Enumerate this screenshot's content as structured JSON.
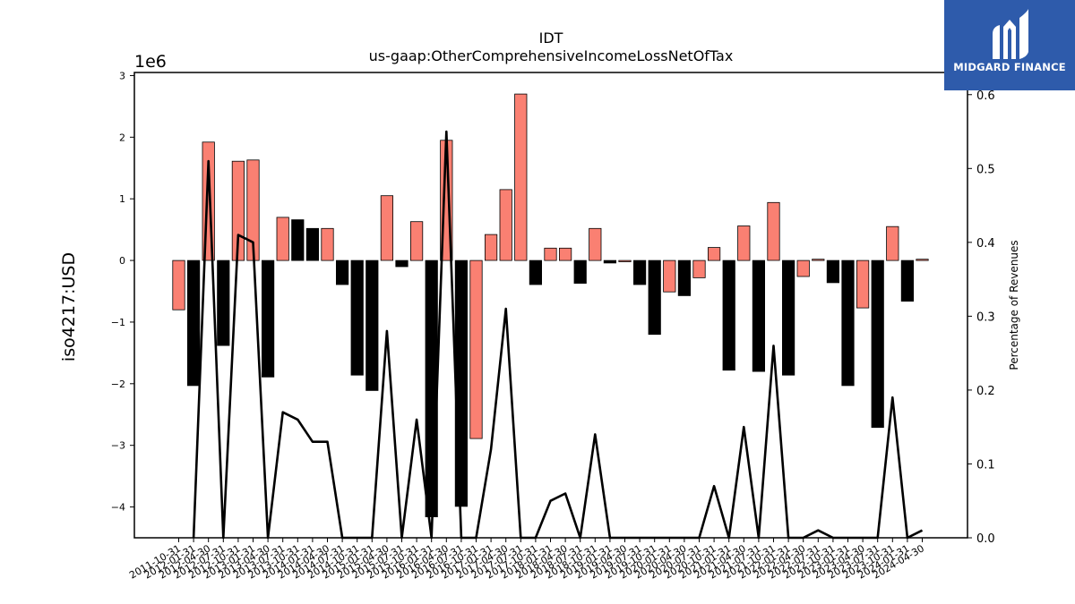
{
  "chart_data": {
    "type": "bar",
    "title": "IDT",
    "subtitle": "us-gaap:OtherComprehensiveIncomeLossNetOfTax",
    "ylabel": "iso4217:USD",
    "y_multiplier": "1e6",
    "y2label": "Percentage of Revenues",
    "ylim": [
      -4.5,
      3.05
    ],
    "y2lim": [
      0,
      0.63
    ],
    "yticks": [
      -4,
      -3,
      -2,
      -1,
      0,
      1,
      2,
      3
    ],
    "y2ticks": [
      0.0,
      0.1,
      0.2,
      0.3,
      0.4,
      0.5,
      0.6
    ],
    "colors": {
      "bar_positive_change": "#fa8072",
      "bar_negative_change": "#000000",
      "line": "#000000"
    },
    "grid": false,
    "categories": [
      "2011-10-31",
      "2012-01-31",
      "2012-04-30",
      "2012-07-31",
      "2012-10-31",
      "2013-01-31",
      "2013-04-30",
      "2013-07-31",
      "2013-10-31",
      "2014-01-31",
      "2014-04-30",
      "2014-07-31",
      "2014-10-31",
      "2015-01-31",
      "2015-04-30",
      "2015-07-31",
      "2015-10-31",
      "2016-01-31",
      "2016-04-30",
      "2016-07-31",
      "2016-10-31",
      "2017-01-31",
      "2017-04-30",
      "2017-07-31",
      "2017-10-31",
      "2018-01-31",
      "2018-04-30",
      "2018-07-31",
      "2018-10-31",
      "2019-01-31",
      "2019-04-30",
      "2019-07-31",
      "2019-10-31",
      "2020-01-31",
      "2020-04-30",
      "2020-07-31",
      "2020-10-31",
      "2021-01-31",
      "2021-04-30",
      "2021-07-31",
      "2021-10-31",
      "2022-01-31",
      "2022-04-30",
      "2022-07-31",
      "2022-10-31",
      "2023-01-31",
      "2023-04-30",
      "2023-07-31",
      "2023-10-31",
      "2024-01-31",
      "2024-04-30"
    ],
    "series": [
      {
        "values": [
          -0.8,
          -2.03,
          1.92,
          -1.38,
          1.61,
          1.63,
          -1.89,
          0.7,
          0.66,
          0.52,
          0.52,
          -0.39,
          -1.86,
          -2.11,
          1.05,
          -0.1,
          0.63,
          -4.16,
          1.95,
          -3.99,
          -2.89,
          0.42,
          1.15,
          2.7,
          -0.39,
          0.2,
          0.2,
          -0.37,
          0.52,
          -0.04,
          -0.02,
          -0.39,
          -1.2,
          -0.51,
          -0.57,
          -0.28,
          0.21,
          -1.78,
          0.56,
          -1.8,
          0.94,
          -1.86,
          -0.26,
          0.02,
          -0.36,
          -2.03,
          -0.77,
          -2.71,
          0.55,
          -0.66,
          0.02
        ]
      },
      {
        "axis": "right",
        "values": [
          null,
          0.0,
          0.51,
          0.0,
          0.41,
          0.4,
          0.0,
          0.17,
          0.16,
          0.13,
          0.13,
          0.0,
          0.0,
          0.0,
          0.28,
          0.0,
          0.16,
          0.0,
          0.55,
          0.0,
          0.0,
          0.12,
          0.31,
          0.0,
          0.0,
          0.05,
          0.06,
          0.0,
          0.14,
          0.0,
          0.0,
          0.0,
          0.0,
          0.0,
          0.0,
          0.0,
          0.07,
          0.0,
          0.15,
          0.0,
          0.26,
          0.0,
          0.0,
          0.01,
          0.0,
          0.0,
          0.0,
          0.0,
          0.19,
          0.0,
          0.01
        ]
      }
    ]
  },
  "logo": {
    "text": "MIDGARD FINANCE"
  }
}
